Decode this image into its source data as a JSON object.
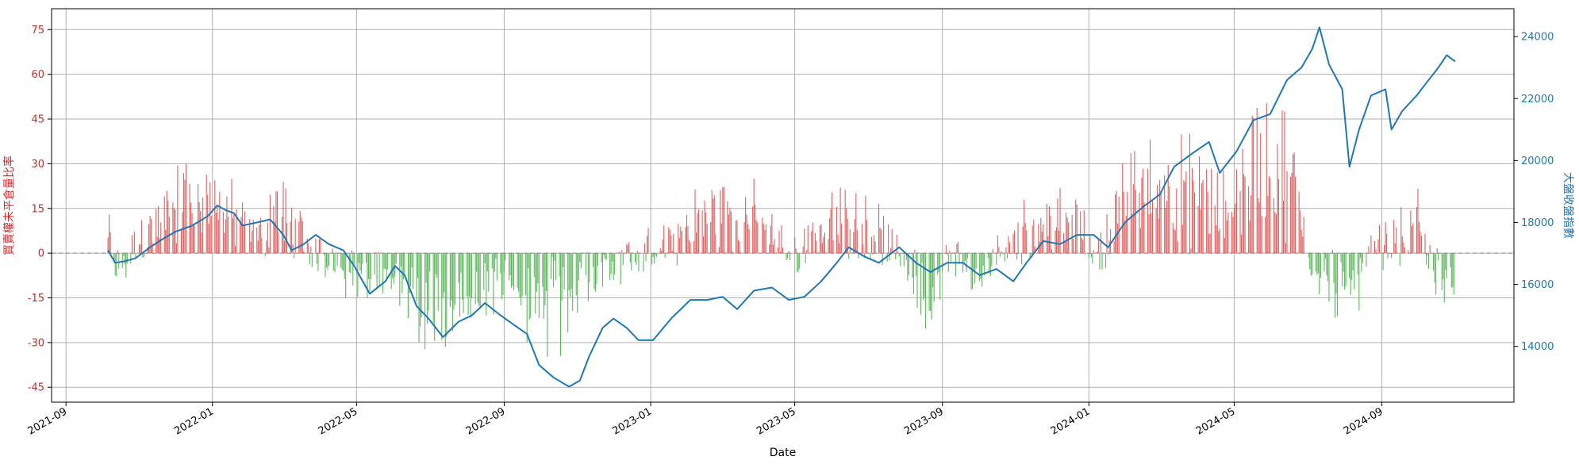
{
  "chart_data": {
    "type": "bar+line",
    "xlabel": "Date",
    "ylabel_left": "買賣權未平倉量比率",
    "ylabel_right": "大盤收盤指數",
    "x_ticks": [
      "2021-09",
      "2022-01",
      "2022-05",
      "2022-09",
      "2023-01",
      "2023-05",
      "2023-09",
      "2024-01",
      "2024-05",
      "2024-09"
    ],
    "xlim": [
      "2021-08-20",
      "2024-12-20"
    ],
    "y_left": {
      "ylim": [
        -50,
        82
      ],
      "ticks": [
        -45,
        -30,
        -15,
        0,
        15,
        30,
        45,
        60,
        75
      ]
    },
    "y_right": {
      "ylim": [
        12200,
        24900
      ],
      "ticks": [
        14000,
        16000,
        18000,
        20000,
        22000,
        24000
      ]
    },
    "grid": true,
    "colors": {
      "positive_bar": "#e06060",
      "negative_bar": "#5cb85c",
      "line": "#1f77b4",
      "left_axis": "#d62728",
      "right_axis": "#1f77b4",
      "zero_line": "#888888",
      "grid": "#b0b0b0"
    },
    "bars_range": [
      "2021-10-06",
      "2024-11-01"
    ],
    "bar_profile": [
      [
        "2021-10-06",
        8
      ],
      [
        "2021-10-15",
        -8
      ],
      [
        "2021-11-01",
        6
      ],
      [
        "2021-11-20",
        12
      ],
      [
        "2021-12-05",
        25
      ],
      [
        "2021-12-20",
        22
      ],
      [
        "2022-01-10",
        18
      ],
      [
        "2022-02-05",
        4
      ],
      [
        "2022-02-25",
        20
      ],
      [
        "2022-03-10",
        10
      ],
      [
        "2022-03-25",
        2
      ],
      [
        "2022-04-10",
        -4
      ],
      [
        "2022-04-25",
        -8
      ],
      [
        "2022-05-15",
        -12
      ],
      [
        "2022-06-01",
        -5
      ],
      [
        "2022-06-15",
        -18
      ],
      [
        "2022-07-01",
        -25
      ],
      [
        "2022-07-20",
        -22
      ],
      [
        "2022-08-15",
        -14
      ],
      [
        "2022-09-05",
        -6
      ],
      [
        "2022-09-25",
        -22
      ],
      [
        "2022-10-15",
        -25
      ],
      [
        "2022-11-01",
        -12
      ],
      [
        "2022-12-01",
        -5
      ],
      [
        "2023-01-01",
        2
      ],
      [
        "2023-01-20",
        5
      ],
      [
        "2023-02-10",
        14
      ],
      [
        "2023-03-01",
        18
      ],
      [
        "2023-03-20",
        16
      ],
      [
        "2023-04-10",
        10
      ],
      [
        "2023-05-01",
        -2
      ],
      [
        "2023-05-20",
        10
      ],
      [
        "2023-06-15",
        14
      ],
      [
        "2023-07-10",
        8
      ],
      [
        "2023-08-01",
        -4
      ],
      [
        "2023-08-20",
        -16
      ],
      [
        "2023-09-10",
        0
      ],
      [
        "2023-10-01",
        -10
      ],
      [
        "2023-10-20",
        2
      ],
      [
        "2023-11-10",
        10
      ],
      [
        "2023-12-01",
        14
      ],
      [
        "2023-12-20",
        10
      ],
      [
        "2024-01-10",
        0
      ],
      [
        "2024-01-25",
        16
      ],
      [
        "2024-02-15",
        30
      ],
      [
        "2024-03-10",
        24
      ],
      [
        "2024-04-01",
        28
      ],
      [
        "2024-04-20",
        16
      ],
      [
        "2024-05-10",
        34
      ],
      [
        "2024-06-01",
        40
      ],
      [
        "2024-06-20",
        30
      ],
      [
        "2024-07-05",
        -4
      ],
      [
        "2024-07-25",
        -12
      ],
      [
        "2024-08-10",
        -20
      ],
      [
        "2024-08-25",
        2
      ],
      [
        "2024-09-10",
        6
      ],
      [
        "2024-10-01",
        12
      ],
      [
        "2024-10-20",
        -14
      ],
      [
        "2024-11-01",
        -6
      ]
    ],
    "series": [
      {
        "name": "大盤收盤指數",
        "axis": "right",
        "points": [
          [
            "2021-10-06",
            17100
          ],
          [
            "2021-10-12",
            16700
          ],
          [
            "2021-10-20",
            16750
          ],
          [
            "2021-10-29",
            16850
          ],
          [
            "2021-11-10",
            17200
          ],
          [
            "2021-11-22",
            17500
          ],
          [
            "2021-12-01",
            17700
          ],
          [
            "2021-12-15",
            17900
          ],
          [
            "2021-12-28",
            18200
          ],
          [
            "2022-01-05",
            18550
          ],
          [
            "2022-01-12",
            18400
          ],
          [
            "2022-01-19",
            18300
          ],
          [
            "2022-01-26",
            17900
          ],
          [
            "2022-02-07",
            18000
          ],
          [
            "2022-02-18",
            18100
          ],
          [
            "2022-03-01",
            17600
          ],
          [
            "2022-03-08",
            17100
          ],
          [
            "2022-03-18",
            17300
          ],
          [
            "2022-03-28",
            17600
          ],
          [
            "2022-04-08",
            17300
          ],
          [
            "2022-04-20",
            17100
          ],
          [
            "2022-04-29",
            16600
          ],
          [
            "2022-05-12",
            15700
          ],
          [
            "2022-05-25",
            16100
          ],
          [
            "2022-06-02",
            16600
          ],
          [
            "2022-06-10",
            16300
          ],
          [
            "2022-06-20",
            15300
          ],
          [
            "2022-06-30",
            14900
          ],
          [
            "2022-07-12",
            14300
          ],
          [
            "2022-07-25",
            14800
          ],
          [
            "2022-08-05",
            15000
          ],
          [
            "2022-08-16",
            15400
          ],
          [
            "2022-08-29",
            15000
          ],
          [
            "2022-09-09",
            14700
          ],
          [
            "2022-09-20",
            14400
          ],
          [
            "2022-09-30",
            13400
          ],
          [
            "2022-10-12",
            13000
          ],
          [
            "2022-10-25",
            12700
          ],
          [
            "2022-11-03",
            12900
          ],
          [
            "2022-11-11",
            13700
          ],
          [
            "2022-11-22",
            14600
          ],
          [
            "2022-12-01",
            14900
          ],
          [
            "2022-12-12",
            14600
          ],
          [
            "2022-12-22",
            14200
          ],
          [
            "2023-01-03",
            14200
          ],
          [
            "2023-01-18",
            14900
          ],
          [
            "2023-02-03",
            15500
          ],
          [
            "2023-02-17",
            15500
          ],
          [
            "2023-03-02",
            15600
          ],
          [
            "2023-03-14",
            15200
          ],
          [
            "2023-03-28",
            15800
          ],
          [
            "2023-04-12",
            15900
          ],
          [
            "2023-04-26",
            15500
          ],
          [
            "2023-05-09",
            15600
          ],
          [
            "2023-05-23",
            16100
          ],
          [
            "2023-06-05",
            16700
          ],
          [
            "2023-06-15",
            17200
          ],
          [
            "2023-06-28",
            16900
          ],
          [
            "2023-07-10",
            16700
          ],
          [
            "2023-07-27",
            17200
          ],
          [
            "2023-08-10",
            16700
          ],
          [
            "2023-08-22",
            16400
          ],
          [
            "2023-09-05",
            16700
          ],
          [
            "2023-09-18",
            16700
          ],
          [
            "2023-10-02",
            16300
          ],
          [
            "2023-10-16",
            16500
          ],
          [
            "2023-10-30",
            16100
          ],
          [
            "2023-11-10",
            16700
          ],
          [
            "2023-11-24",
            17400
          ],
          [
            "2023-12-08",
            17300
          ],
          [
            "2023-12-22",
            17600
          ],
          [
            "2024-01-05",
            17600
          ],
          [
            "2024-01-17",
            17200
          ],
          [
            "2024-01-31",
            18000
          ],
          [
            "2024-02-15",
            18500
          ],
          [
            "2024-02-29",
            18900
          ],
          [
            "2024-03-12",
            19800
          ],
          [
            "2024-03-26",
            20200
          ],
          [
            "2024-04-10",
            20600
          ],
          [
            "2024-04-19",
            19600
          ],
          [
            "2024-05-03",
            20300
          ],
          [
            "2024-05-17",
            21300
          ],
          [
            "2024-05-31",
            21500
          ],
          [
            "2024-06-14",
            22600
          ],
          [
            "2024-06-26",
            23000
          ],
          [
            "2024-07-05",
            23600
          ],
          [
            "2024-07-11",
            24300
          ],
          [
            "2024-07-19",
            23100
          ],
          [
            "2024-07-30",
            22300
          ],
          [
            "2024-08-05",
            19800
          ],
          [
            "2024-08-13",
            21000
          ],
          [
            "2024-08-23",
            22100
          ],
          [
            "2024-09-04",
            22300
          ],
          [
            "2024-09-09",
            21000
          ],
          [
            "2024-09-18",
            21600
          ],
          [
            "2024-09-30",
            22100
          ],
          [
            "2024-10-08",
            22500
          ],
          [
            "2024-10-18",
            23000
          ],
          [
            "2024-10-25",
            23400
          ],
          [
            "2024-11-01",
            23200
          ]
        ]
      }
    ]
  }
}
